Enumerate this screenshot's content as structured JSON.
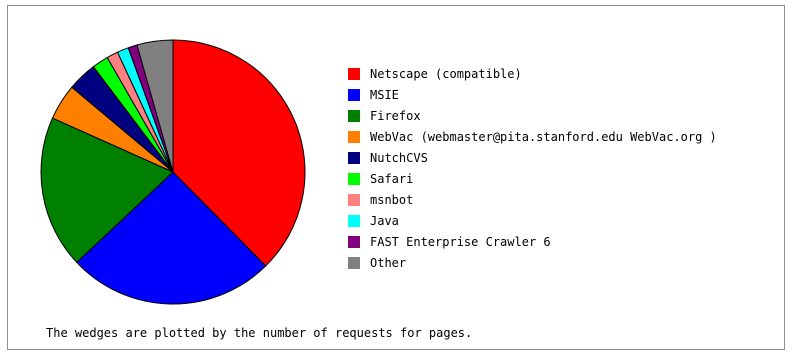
{
  "caption": "The wedges are plotted by the number of requests for pages.",
  "chart_data": {
    "type": "pie",
    "start": "12 o'clock",
    "direction": "clockwise",
    "legend_placement": "right",
    "slices": [
      {
        "label": "Netscape (compatible)",
        "value": 37.6,
        "color": "#ff0000"
      },
      {
        "label": "MSIE",
        "value": 25.4,
        "color": "#0000ff"
      },
      {
        "label": "Firefox",
        "value": 18.7,
        "color": "#008000"
      },
      {
        "label": "WebVac (webmaster@pita.stanford.edu WebVac.org )",
        "value": 4.4,
        "color": "#ff8000"
      },
      {
        "label": "NutchCVS",
        "value": 3.6,
        "color": "#000080"
      },
      {
        "label": "Safari",
        "value": 2.0,
        "color": "#00ff00"
      },
      {
        "label": "msnbot",
        "value": 1.4,
        "color": "#ff8080"
      },
      {
        "label": "Java",
        "value": 1.4,
        "color": "#00ffff"
      },
      {
        "label": "FAST Enterprise Crawler 6",
        "value": 1.1,
        "color": "#800080"
      },
      {
        "label": "Other",
        "value": 4.4,
        "color": "#808080"
      }
    ]
  }
}
